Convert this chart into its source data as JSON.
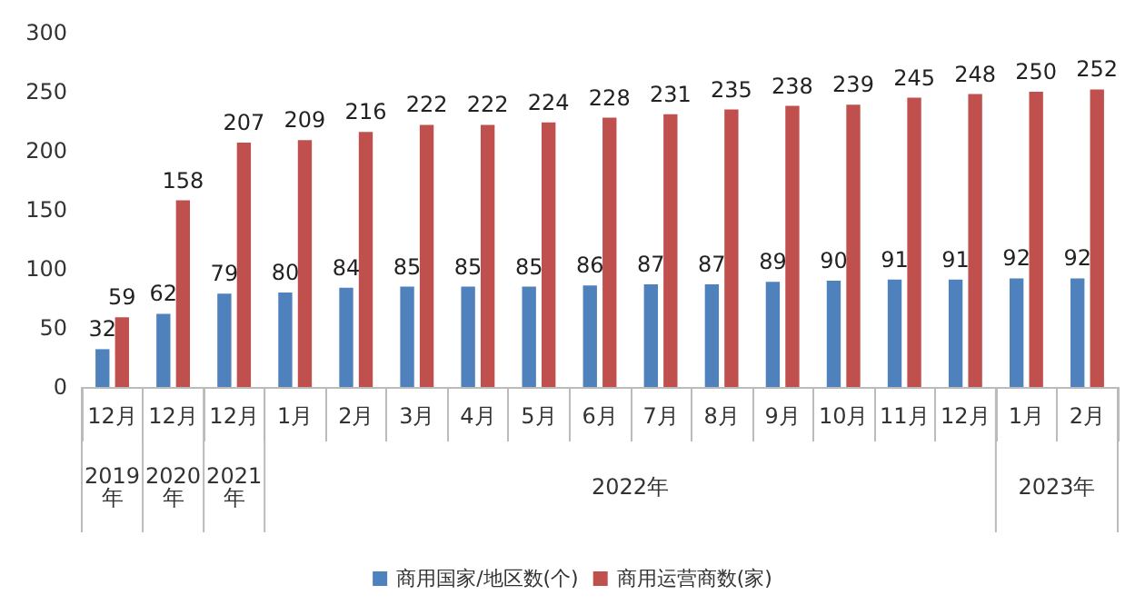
{
  "chart_data": {
    "type": "bar",
    "categories": [
      "12月",
      "12月",
      "12月",
      "1月",
      "2月",
      "3月",
      "4月",
      "5月",
      "6月",
      "7月",
      "8月",
      "9月",
      "10月",
      "11月",
      "12月",
      "1月",
      "2月"
    ],
    "series": [
      {
        "name": "商用国家/地区数(个)",
        "color": "#4f81bd",
        "values": [
          32,
          62,
          79,
          80,
          84,
          85,
          85,
          85,
          86,
          87,
          87,
          89,
          90,
          91,
          91,
          92,
          92
        ]
      },
      {
        "name": "商用运营商数(家)",
        "color": "#c0504d",
        "values": [
          59,
          158,
          207,
          209,
          216,
          222,
          222,
          224,
          228,
          231,
          235,
          238,
          239,
          245,
          248,
          250,
          252
        ]
      }
    ],
    "annotations": [
      "2019年",
      "2020年",
      "2021年",
      "2022年",
      "2023年"
    ],
    "ylim": [
      0,
      300
    ],
    "yticks": [
      0,
      50,
      100,
      150,
      200,
      250,
      300
    ],
    "data_labels": true,
    "grid": false,
    "legend": "bottom"
  }
}
